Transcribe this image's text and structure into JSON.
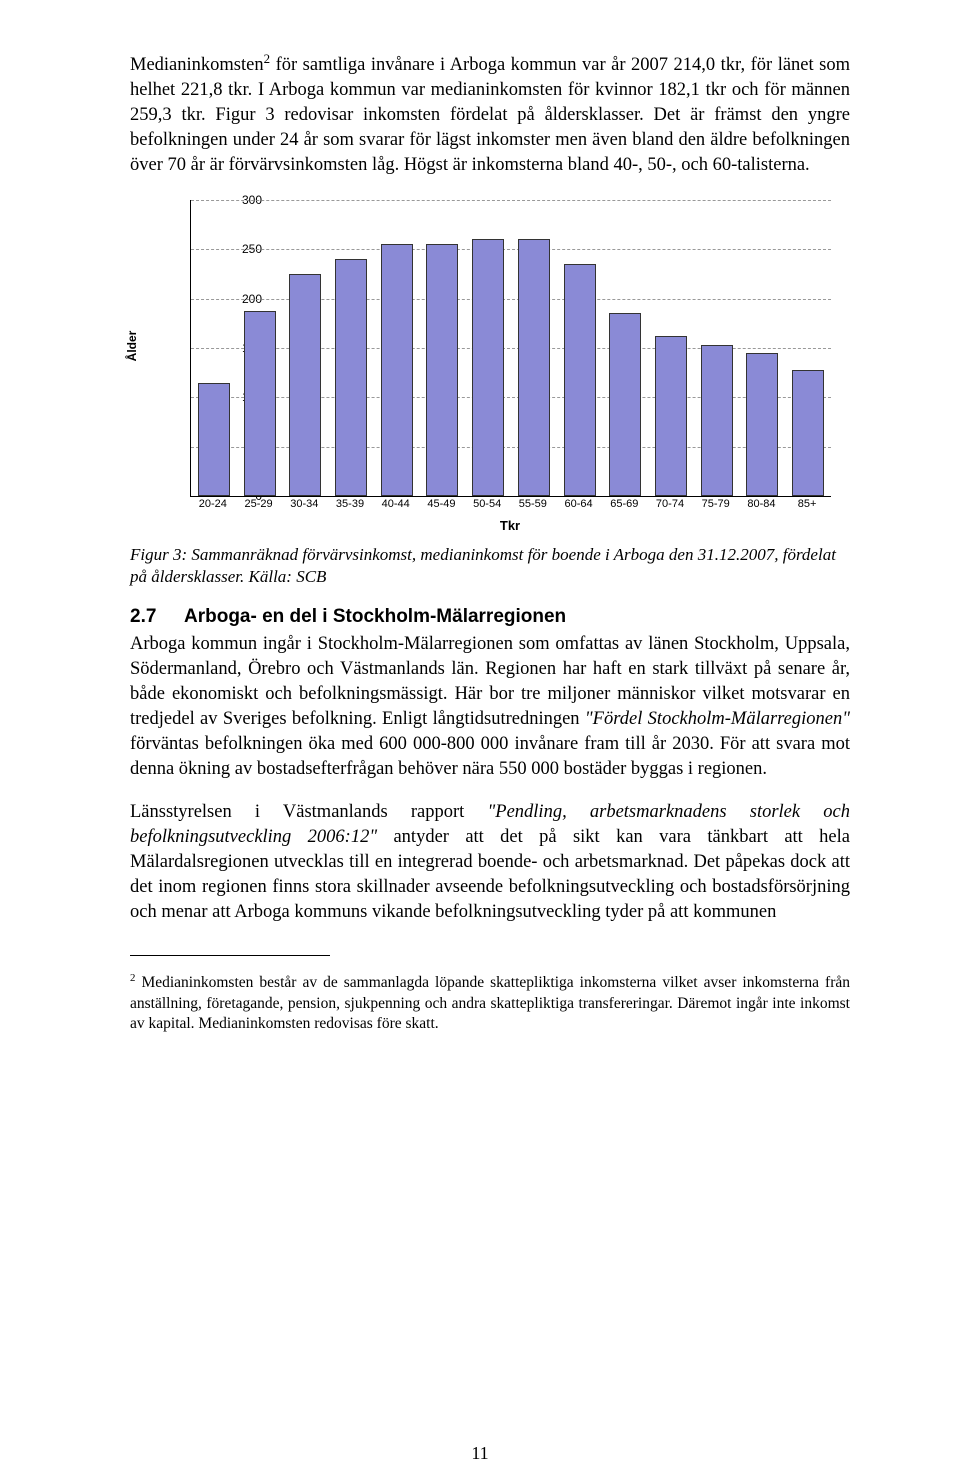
{
  "para1_a": "Medianinkomsten",
  "para1_sup": "2",
  "para1_b": " för samtliga invånare i Arboga kommun var år 2007 214,0 tkr, för länet som helhet 221,8 tkr. I Arboga kommun var medianinkomsten för kvinnor 182,1 tkr och för männen 259,3 tkr. Figur 3 redovisar inkomsten fördelat på åldersklasser. Det är främst den yngre befolkningen under 24 år som svarar för lägst inkomster men även bland den äldre befolkningen över 70 år är förvärvsinkomsten låg. Högst är inkomsterna bland 40-, 50-, och 60-talisterna.",
  "chart": {
    "type": "bar",
    "categories": [
      "20-24",
      "25-29",
      "30-34",
      "35-39",
      "40-44",
      "45-49",
      "50-54",
      "55-59",
      "60-64",
      "65-69",
      "70-74",
      "75-79",
      "80-84",
      "85+"
    ],
    "values": [
      115,
      188,
      225,
      240,
      255,
      255,
      260,
      260,
      235,
      185,
      162,
      153,
      145,
      128
    ],
    "bar_color": "#8a8ad6",
    "bar_border": "#333333",
    "ylim": [
      0,
      300
    ],
    "ytick_step": 50,
    "yticks": [
      0,
      50,
      100,
      150,
      200,
      250,
      300
    ],
    "grid_color": "#999999",
    "background_color": "#ffffff",
    "yaxis_title": "Ålder",
    "xaxis_title": "Tkr",
    "bar_width": 0.7,
    "label_fontsize": 12,
    "tick_fontsize": 11
  },
  "fig_caption": "Figur 3: Sammanräknad förvärvsinkomst, medianinkomst för boende i Arboga den 31.12.2007, fördelat på åldersklasser. Källa: SCB",
  "heading_num": "2.7",
  "heading_text": "Arboga- en del i Stockholm-Mälarregionen",
  "para2_a": "Arboga kommun ingår i Stockholm-Mälarregionen som omfattas av länen Stockholm, Uppsala, Södermanland, Örebro och Västmanlands län. Regionen har haft en stark tillväxt på senare år, både ekonomiskt och befolkningsmässigt. Här bor tre miljoner människor vilket motsvarar en tredjedel av Sveriges befolkning. Enligt långtidsutredningen ",
  "para2_i1": "\"Fördel Stockholm-Mälarregionen\"",
  "para2_b": " förväntas befolkningen öka med 600 000-800 000 invånare fram till år 2030. För att svara mot denna ökning av bostadsefterfrågan behöver nära 550 000 bostäder byggas i regionen.",
  "para3_a": "Länsstyrelsen i Västmanlands rapport ",
  "para3_i1": "\"Pendling, arbetsmarknadens storlek och befolkningsutveckling 2006:12\"",
  "para3_b": " antyder att det på sikt kan vara tänkbart att hela Mälardalsregionen utvecklas till en integrerad boende- och arbetsmarknad. Det påpekas dock att det inom regionen finns stora skillnader avseende befolkningsutveckling och bostadsförsörjning och menar att Arboga kommuns vikande befolkningsutveckling tyder på att kommunen",
  "footnote_sup": "2",
  "footnote_text": " Medianinkomsten består av de sammanlagda löpande skattepliktiga inkomsterna vilket avser inkomsterna från anställning, företagande, pension, sjukpenning och andra skattepliktiga transfereringar. Däremot ingår inte inkomst av kapital. Medianinkomsten redovisas före skatt.",
  "page_number": "11"
}
